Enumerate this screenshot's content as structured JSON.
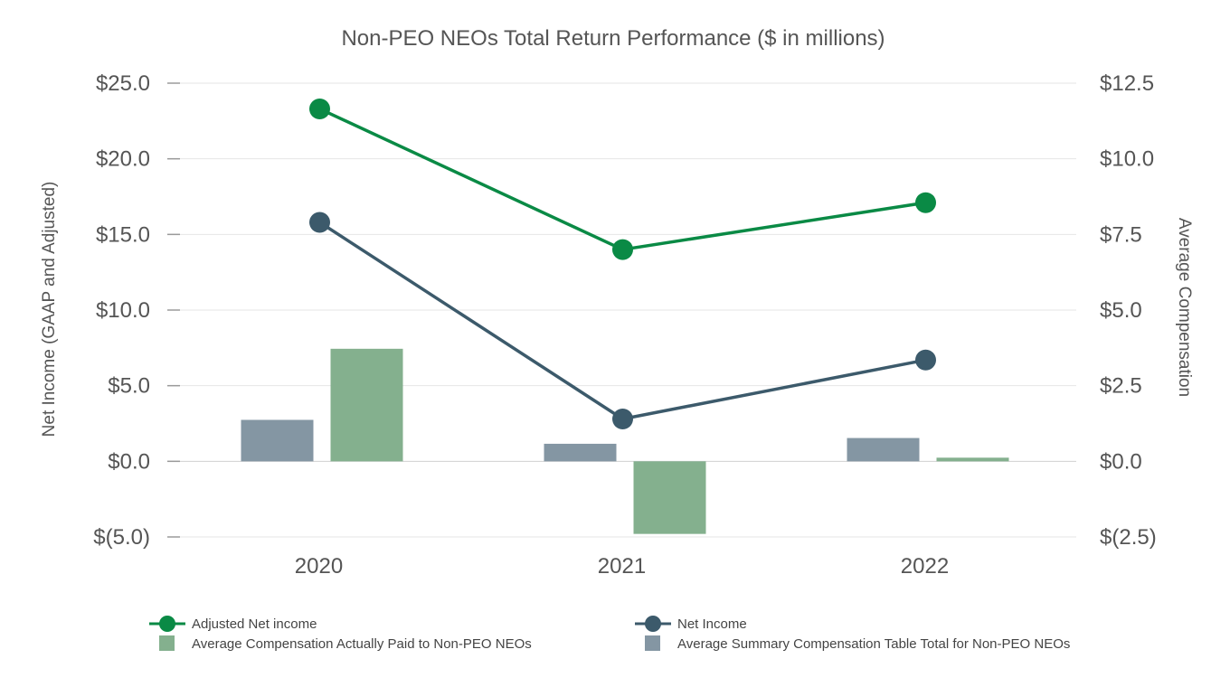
{
  "chart_data": {
    "type": "bar",
    "title": "Non-PEO NEOs Total Return Performance ($ in millions)",
    "categories": [
      "2020",
      "2021",
      "2022"
    ],
    "left_axis": {
      "label": "Net Income  (GAAP and Adjusted)",
      "ylim": [
        -5,
        25
      ],
      "ticks": [
        25,
        20,
        15,
        10,
        5,
        0,
        -5
      ],
      "tick_labels": [
        "$25.0",
        "$20.0",
        "$15.0",
        "$10.0",
        "$5.0",
        "$0.0",
        "$(5.0)"
      ]
    },
    "right_axis": {
      "label": "Average Compensation",
      "ylim": [
        -2.5,
        12.5
      ],
      "ticks": [
        12.5,
        10,
        7.5,
        5,
        2.5,
        0,
        -2.5
      ],
      "tick_labels": [
        "$12.5",
        "$10.0",
        "$7.5",
        "$5.0",
        "$2.5",
        "$0.0",
        "$(2.5)"
      ]
    },
    "grid": true,
    "legend_position": "bottom",
    "series": [
      {
        "name": "Average Summary Compensation Table Total for Non-PEO NEOs",
        "type": "bar",
        "axis": "right",
        "color": "#8496a3",
        "values": [
          1.37,
          0.58,
          0.77
        ]
      },
      {
        "name": "Average Compensation Actually Paid to Non-PEO NEOs",
        "type": "bar",
        "axis": "right",
        "color": "#84b08e",
        "values": [
          3.72,
          -2.4,
          0.12
        ]
      },
      {
        "name": "Adjusted Net income",
        "type": "line",
        "axis": "left",
        "color": "#0a8a45",
        "values": [
          23.3,
          14.0,
          17.1
        ]
      },
      {
        "name": "Net Income",
        "type": "line",
        "axis": "left",
        "color": "#3c5a6b",
        "values": [
          15.8,
          2.8,
          6.7
        ]
      }
    ]
  }
}
